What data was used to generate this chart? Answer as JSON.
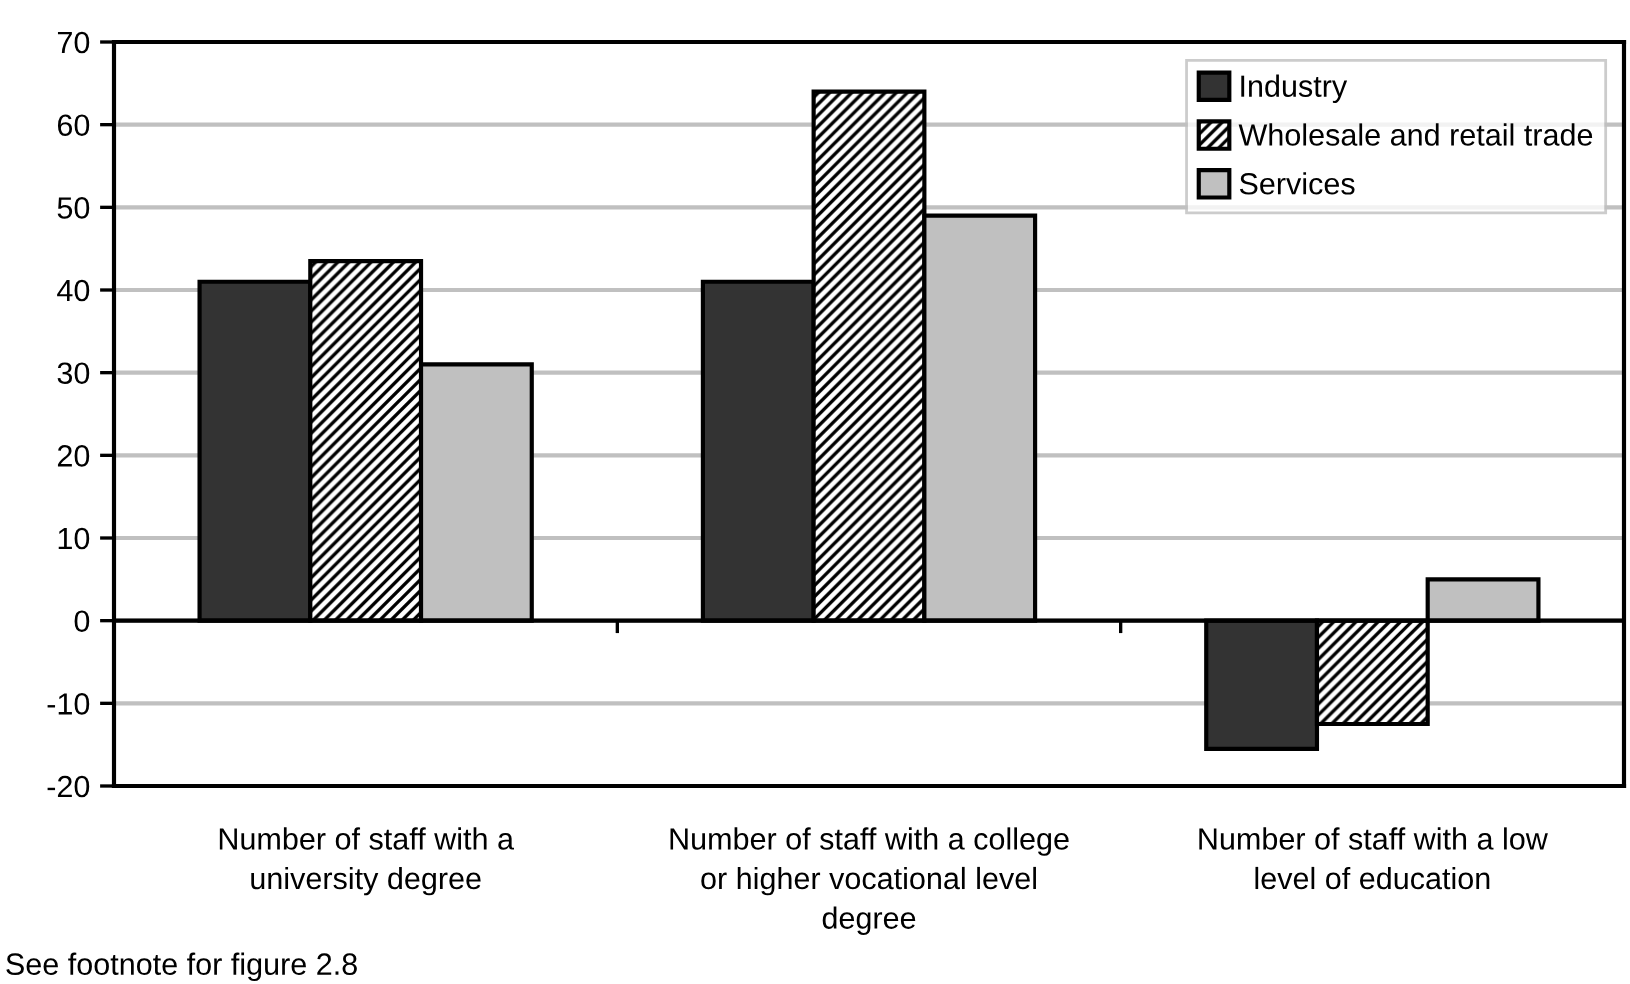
{
  "chart_data": {
    "type": "bar",
    "categories": [
      "Number of staff with a\nuniversity degree",
      "Number of staff with a college\nor higher vocational level\ndegree",
      "Number of staff with a low\nlevel of education"
    ],
    "series": [
      {
        "name": "Industry",
        "color": "#333333",
        "values": [
          41,
          41,
          -15.5
        ]
      },
      {
        "name": "Wholesale and retail trade",
        "color": "#000000",
        "values": [
          43.5,
          64,
          -12.5
        ]
      },
      {
        "name": "Services",
        "color": "#c0c0c0",
        "values": [
          31,
          49,
          5
        ]
      }
    ],
    "ylim": [
      -20,
      70
    ],
    "yticks": [
      -20,
      -10,
      0,
      10,
      20,
      30,
      40,
      50,
      60,
      70
    ],
    "grid": "y",
    "legend": "top right",
    "annotations": [
      "See footnote for figure 2.8"
    ]
  }
}
